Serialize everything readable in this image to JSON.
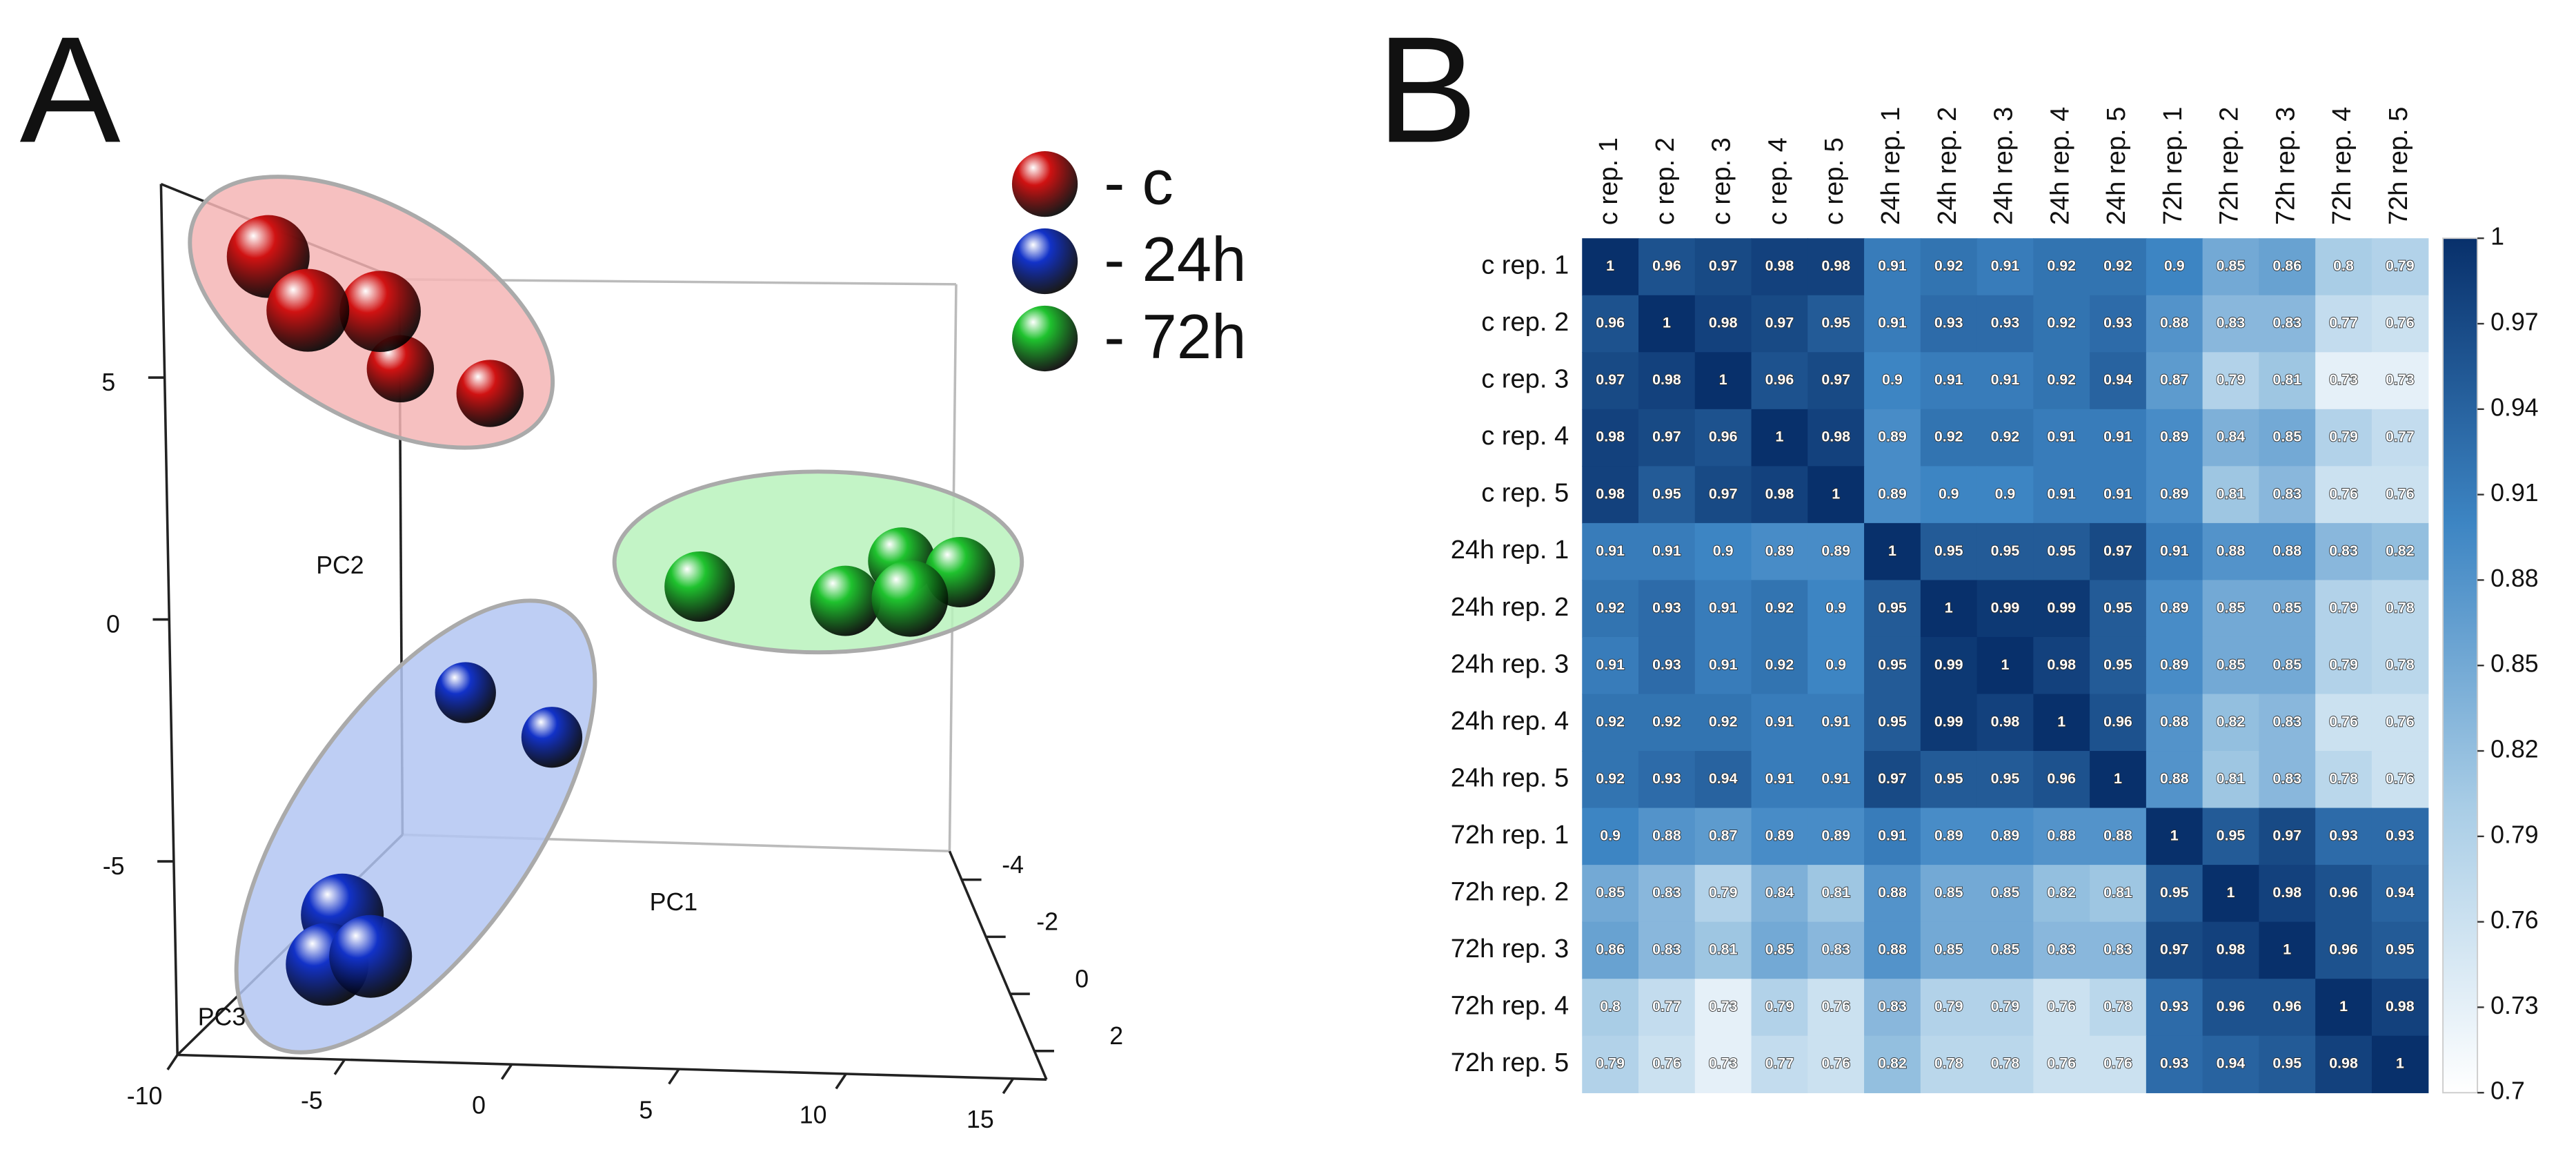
{
  "chart_data": [
    {
      "panel": "A",
      "type": "scatter3d",
      "xlabel": "PC1",
      "ylabel": "PC2",
      "zlabel": "PC3",
      "xlim": [
        -10,
        16
      ],
      "ylim": [
        -9,
        9
      ],
      "zlim": [
        -5,
        3
      ],
      "xticks": [
        -10,
        -5,
        0,
        5,
        10,
        15
      ],
      "yticks": [
        5,
        0,
        -5
      ],
      "zticks": [
        -4,
        -2,
        0,
        2
      ],
      "series": [
        {
          "name": "- c",
          "color": "#d01212",
          "x": [
            -8.2,
            -7.0,
            -4.9,
            -5.5,
            -2.4
          ],
          "y": [
            7.8,
            6.6,
            6.6,
            5.5,
            4.9
          ],
          "z": [
            1.4,
            1.4,
            1.2,
            -0.6,
            -0.6
          ]
        },
        {
          "name": "- 24h",
          "color": "#1232c8",
          "x": [
            -3.8,
            -0.6,
            -6.1,
            -6.6,
            -5.2
          ],
          "y": [
            -2.7,
            -3.8,
            -6.8,
            -7.9,
            -7.7
          ],
          "z": [
            -1.4,
            -1.4,
            1.4,
            1.4,
            1.4
          ]
        },
        {
          "name": "- 72h",
          "color": "#1fc22e",
          "x": [
            5.0,
            10.0,
            12.0,
            12.0,
            13.9
          ],
          "y": [
            0.3,
            0.0,
            0.9,
            0.2,
            0.7
          ],
          "z": [
            -0.2,
            -0.2,
            -0.6,
            0.6,
            -0.2
          ]
        }
      ]
    },
    {
      "panel": "B",
      "type": "heatmap",
      "categories": [
        "c rep. 1",
        "c rep. 2",
        "c rep. 3",
        "c rep. 4",
        "c rep. 5",
        "24h rep. 1",
        "24h rep. 2",
        "24h rep. 3",
        "24h rep. 4",
        "24h rep. 5",
        "72h rep. 1",
        "72h rep. 2",
        "72h rep. 3",
        "72h rep. 4",
        "72h rep. 5"
      ],
      "values": [
        [
          1,
          0.96,
          0.97,
          0.98,
          0.98,
          0.91,
          0.92,
          0.91,
          0.92,
          0.92,
          0.9,
          0.85,
          0.86,
          0.8,
          0.79
        ],
        [
          0.96,
          1,
          0.98,
          0.97,
          0.95,
          0.91,
          0.93,
          0.93,
          0.92,
          0.93,
          0.88,
          0.83,
          0.83,
          0.77,
          0.76
        ],
        [
          0.97,
          0.98,
          1,
          0.96,
          0.97,
          0.9,
          0.91,
          0.91,
          0.92,
          0.94,
          0.87,
          0.79,
          0.81,
          0.73,
          0.73
        ],
        [
          0.98,
          0.97,
          0.96,
          1,
          0.98,
          0.89,
          0.92,
          0.92,
          0.91,
          0.91,
          0.89,
          0.84,
          0.85,
          0.79,
          0.77
        ],
        [
          0.98,
          0.95,
          0.97,
          0.98,
          1,
          0.89,
          0.9,
          0.9,
          0.91,
          0.91,
          0.89,
          0.81,
          0.83,
          0.76,
          0.76
        ],
        [
          0.91,
          0.91,
          0.9,
          0.89,
          0.89,
          1,
          0.95,
          0.95,
          0.95,
          0.97,
          0.91,
          0.88,
          0.88,
          0.83,
          0.82
        ],
        [
          0.92,
          0.93,
          0.91,
          0.92,
          0.9,
          0.95,
          1,
          0.99,
          0.99,
          0.95,
          0.89,
          0.85,
          0.85,
          0.79,
          0.78
        ],
        [
          0.91,
          0.93,
          0.91,
          0.92,
          0.9,
          0.95,
          0.99,
          1,
          0.98,
          0.95,
          0.89,
          0.85,
          0.85,
          0.79,
          0.78
        ],
        [
          0.92,
          0.92,
          0.92,
          0.91,
          0.91,
          0.95,
          0.99,
          0.98,
          1,
          0.96,
          0.88,
          0.82,
          0.83,
          0.76,
          0.76
        ],
        [
          0.92,
          0.93,
          0.94,
          0.91,
          0.91,
          0.97,
          0.95,
          0.95,
          0.96,
          1,
          0.88,
          0.81,
          0.83,
          0.78,
          0.76
        ],
        [
          0.9,
          0.88,
          0.87,
          0.89,
          0.89,
          0.91,
          0.89,
          0.89,
          0.88,
          0.88,
          1,
          0.95,
          0.97,
          0.93,
          0.93
        ],
        [
          0.85,
          0.83,
          0.79,
          0.84,
          0.81,
          0.88,
          0.85,
          0.85,
          0.82,
          0.81,
          0.95,
          1,
          0.98,
          0.96,
          0.94
        ],
        [
          0.86,
          0.83,
          0.81,
          0.85,
          0.83,
          0.88,
          0.85,
          0.85,
          0.83,
          0.83,
          0.97,
          0.98,
          1,
          0.96,
          0.95
        ],
        [
          0.8,
          0.77,
          0.73,
          0.79,
          0.76,
          0.83,
          0.79,
          0.79,
          0.76,
          0.78,
          0.93,
          0.96,
          0.96,
          1,
          0.98
        ],
        [
          0.79,
          0.76,
          0.73,
          0.77,
          0.76,
          0.82,
          0.78,
          0.78,
          0.76,
          0.76,
          0.93,
          0.94,
          0.95,
          0.98,
          1
        ]
      ],
      "zlim": [
        0.7,
        1
      ],
      "zticks": [
        1,
        0.97,
        0.94,
        0.91,
        0.88,
        0.85,
        0.82,
        0.79,
        0.76,
        0.73,
        0.7
      ],
      "colors": [
        "#ffffff",
        "#a9cde6",
        "#3d85c3",
        "#08306b"
      ]
    }
  ]
}
